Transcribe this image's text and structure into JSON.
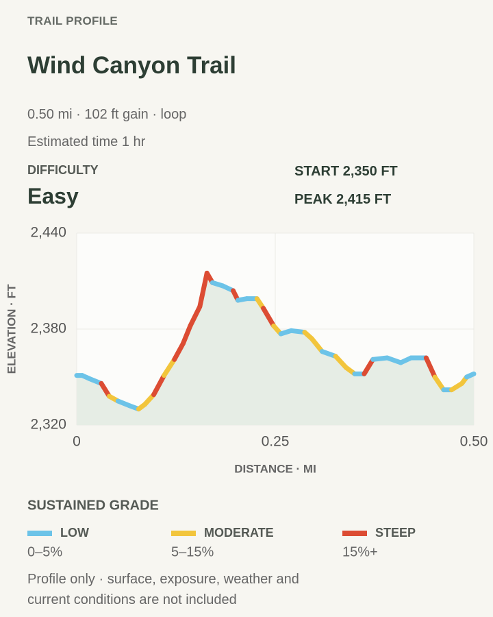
{
  "header": {
    "kicker": "TRAIL PROFILE",
    "title": "Wind Canyon Trail",
    "summary": "0.50 mi · 102 ft gain · loop",
    "time": "Estimated time 1 hr",
    "difficulty_label": "DIFFICULTY",
    "difficulty": "Easy",
    "start": "START 2,350 FT",
    "peak": "PEAK 2,415 FT"
  },
  "chart_data": {
    "type": "line",
    "x_label": "DISTANCE · MI",
    "y_label": "ELEVATION · FT",
    "xlim": [
      0,
      0.5
    ],
    "xticks": [
      0,
      0.25,
      {
        "value": 0.5,
        "label": "0.50"
      }
    ],
    "ylim": [
      2320,
      2440
    ],
    "yticks": [
      {
        "value": 2320,
        "label": "2,320"
      },
      {
        "value": 2380,
        "label": "2,380"
      },
      {
        "value": 2440,
        "label": "2,440"
      }
    ],
    "grid": true,
    "area_color": "#e6ede5",
    "series": [
      {
        "name": "Elevation",
        "x": [
          0,
          0.007,
          0.016,
          0.031,
          0.041,
          0.052,
          0.067,
          0.078,
          0.086,
          0.097,
          0.11,
          0.123,
          0.134,
          0.143,
          0.155,
          0.164,
          0.171,
          0.184,
          0.197,
          0.203,
          0.214,
          0.227,
          0.235,
          0.248,
          0.257,
          0.27,
          0.287,
          0.296,
          0.309,
          0.326,
          0.339,
          0.35,
          0.362,
          0.373,
          0.391,
          0.408,
          0.421,
          0.44,
          0.451,
          0.462,
          0.472,
          0.485,
          0.491,
          0.5
        ],
        "values": [
          2351,
          2351,
          2349,
          2346,
          2338,
          2335,
          2332,
          2330,
          2333,
          2339,
          2351,
          2361,
          2371,
          2382,
          2394,
          2415,
          2409,
          2407,
          2404,
          2398,
          2399,
          2399,
          2393,
          2382,
          2377,
          2379,
          2378,
          2374,
          2366,
          2363,
          2356,
          2352,
          2352,
          2361,
          2362,
          2359,
          2362,
          2362,
          2350,
          2342,
          2342,
          2346,
          2350,
          2352
        ]
      }
    ],
    "legend": {
      "title": "SUSTAINED GRADE",
      "bands": [
        {
          "name": "LOW",
          "range": "0–5%",
          "min": 0,
          "max": 5,
          "color": "#6cc3e8"
        },
        {
          "name": "MODERATE",
          "range": "5–15%",
          "min": 5,
          "max": 15,
          "color": "#f2c53c"
        },
        {
          "name": "STEEP",
          "range": "15%+",
          "min": 15,
          "max": null,
          "color": "#dc4c33"
        }
      ]
    }
  },
  "footer": {
    "note": "Profile only · surface, exposure, weather and current conditions are not included"
  }
}
